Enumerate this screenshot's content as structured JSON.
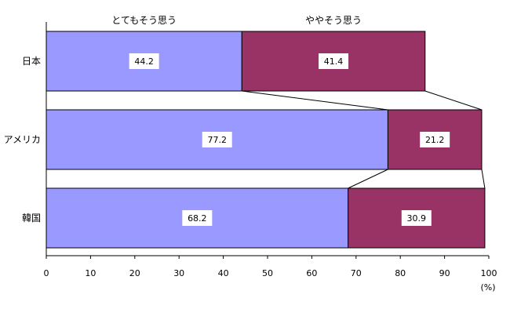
{
  "chart_data": {
    "type": "bar",
    "orientation": "horizontal",
    "stacked": true,
    "categories": [
      "日本",
      "アメリカ",
      "韓国"
    ],
    "series": [
      {
        "name": "とてもそう思う",
        "values": [
          44.2,
          77.2,
          68.2
        ],
        "color": "#9999ff"
      },
      {
        "name": "ややそう思う",
        "values": [
          41.4,
          21.2,
          30.9
        ],
        "color": "#993366"
      }
    ],
    "xlim": [
      0,
      100
    ],
    "xticks": [
      0,
      10,
      20,
      30,
      40,
      50,
      60,
      70,
      80,
      90,
      100
    ],
    "unit_label": "(%)",
    "legend_placement": "top, above bar segments",
    "grid": false,
    "connector_lines": true
  }
}
